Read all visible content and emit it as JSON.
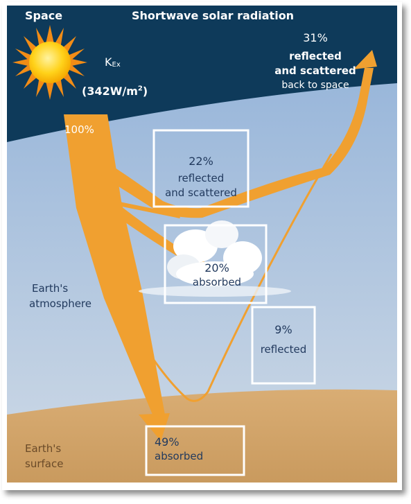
{
  "header": {
    "space_label": "Space",
    "title": "Shortwave solar radiation"
  },
  "source": {
    "symbol_main": "K",
    "symbol_sub": "Ex",
    "intensity_prefix": "(342W/m",
    "intensity_exp": "2",
    "intensity_suffix": ")",
    "percent": "100%"
  },
  "flows": {
    "space": {
      "percent": "31%",
      "line1": "reflected",
      "line2": "and scattered",
      "line3": "back to space"
    },
    "clouds_reflected": {
      "percent": "22%",
      "line1": "reflected",
      "line2": "and scattered"
    },
    "clouds_absorbed": {
      "percent": "20%",
      "line1": "absorbed"
    },
    "surface_reflected": {
      "percent": "9%",
      "line1": "reflected"
    },
    "surface_absorbed": {
      "percent": "49%",
      "line1": "absorbed"
    }
  },
  "layers": {
    "atmosphere_line1": "Earth's",
    "atmosphere_line2": "atmosphere",
    "surface_line1": "Earth's",
    "surface_line2": "surface"
  },
  "colors": {
    "space": "#0e3a5a",
    "atmosphere_top": "#8fb0d8",
    "atmosphere_bottom": "#c5d4e2",
    "surface": "#d2a46a",
    "arrow": "#f0a030",
    "sun": "#ffd21a"
  }
}
